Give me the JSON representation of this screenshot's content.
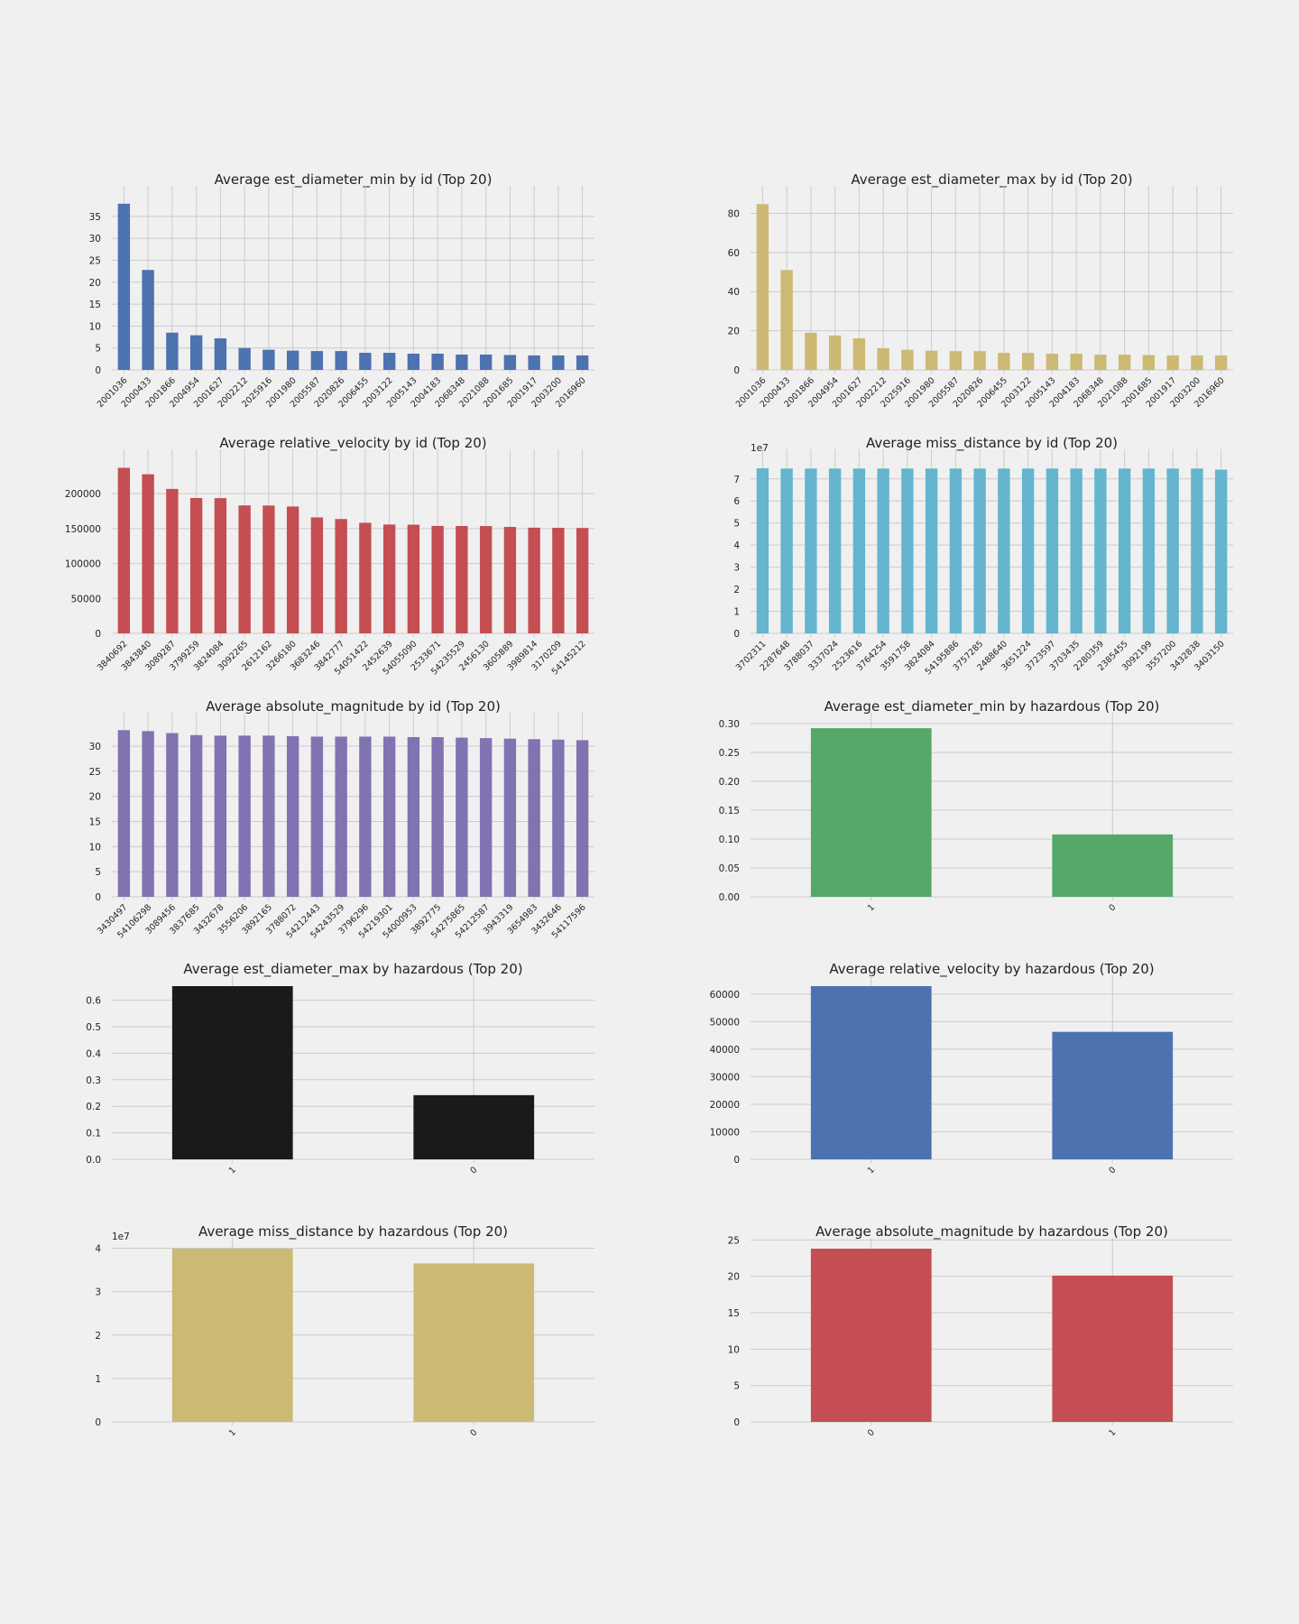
{
  "colors": {
    "background": "#f0f0f0",
    "grid": "#cbcbcb",
    "text": "#222222"
  },
  "chart_data": [
    {
      "type": "bar",
      "title": "Average est_diameter_min by id (Top 20)",
      "color": "#4c72b0",
      "categories": [
        "2001036",
        "2000433",
        "2001866",
        "2004954",
        "2001627",
        "2002212",
        "2025916",
        "2001980",
        "2005587",
        "2020826",
        "2006455",
        "2003122",
        "2005143",
        "2004183",
        "2068348",
        "2021088",
        "2001685",
        "2001917",
        "2003200",
        "2016960"
      ],
      "values": [
        37.9,
        22.8,
        8.5,
        7.9,
        7.2,
        5.0,
        4.6,
        4.4,
        4.3,
        4.3,
        3.9,
        3.9,
        3.7,
        3.7,
        3.5,
        3.5,
        3.4,
        3.3,
        3.3,
        3.3
      ],
      "yticks": [
        0,
        5,
        10,
        15,
        20,
        25,
        30,
        35
      ],
      "ytick_labels": [
        "0",
        "5",
        "10",
        "15",
        "20",
        "25",
        "30",
        "35"
      ],
      "ylim": [
        0,
        39.5
      ],
      "xtick_rotation": 45,
      "grid": true
    },
    {
      "type": "bar",
      "title": "Average est_diameter_max by id (Top 20)",
      "color": "#ccb974",
      "categories": [
        "2001036",
        "2000433",
        "2001866",
        "2004954",
        "2001627",
        "2002212",
        "2025916",
        "2001980",
        "2005587",
        "2020826",
        "2006455",
        "2003122",
        "2005143",
        "2004183",
        "2068348",
        "2021088",
        "2001685",
        "2001917",
        "2003200",
        "2016960"
      ],
      "values": [
        84.7,
        51.0,
        19.0,
        17.6,
        16.1,
        11.1,
        10.3,
        9.8,
        9.6,
        9.6,
        8.7,
        8.7,
        8.3,
        8.3,
        7.8,
        7.8,
        7.6,
        7.4,
        7.4,
        7.4
      ],
      "yticks": [
        0,
        20,
        40,
        60,
        80
      ],
      "ytick_labels": [
        "0",
        "20",
        "40",
        "60",
        "80"
      ],
      "ylim": [
        0,
        88.5
      ],
      "xtick_rotation": 45,
      "grid": true
    },
    {
      "type": "bar",
      "title": "Average relative_velocity by id (Top 20)",
      "color": "#c44e52",
      "categories": [
        "3840692",
        "3843840",
        "3089287",
        "3799259",
        "3824084",
        "3092265",
        "2612162",
        "3266180",
        "3683246",
        "3842777",
        "54051422",
        "2452639",
        "54055090",
        "2533671",
        "54235529",
        "2456130",
        "3605889",
        "3989814",
        "3170209",
        "54145212"
      ],
      "values": [
        236990,
        227800,
        206800,
        193800,
        193600,
        183200,
        183000,
        181600,
        166000,
        163700,
        158300,
        155800,
        155600,
        153800,
        153700,
        153600,
        152400,
        151300,
        151100,
        150900
      ],
      "yticks": [
        0,
        50000,
        100000,
        150000,
        200000
      ],
      "ytick_labels": [
        "0",
        "50000",
        "100000",
        "150000",
        "200000"
      ],
      "ylim": [
        0,
        248000
      ],
      "xtick_rotation": 45,
      "grid": true
    },
    {
      "type": "bar",
      "title": "Average miss_distance by id (Top 20)",
      "color": "#64b5cd",
      "categories": [
        "3702311",
        "2287648",
        "3788037",
        "3337024",
        "2523616",
        "3764254",
        "3591758",
        "3824084",
        "54195886",
        "3757285",
        "2488640",
        "3651224",
        "3723597",
        "3703435",
        "2280359",
        "2385455",
        "3092199",
        "3557200",
        "3432838",
        "3403150"
      ],
      "values": [
        7.48,
        7.47,
        7.47,
        7.47,
        7.47,
        7.47,
        7.47,
        7.47,
        7.47,
        7.47,
        7.47,
        7.47,
        7.47,
        7.47,
        7.47,
        7.47,
        7.47,
        7.47,
        7.47,
        7.42
      ],
      "offset_label": "1e7",
      "yticks": [
        0,
        1,
        2,
        3,
        4,
        5,
        6,
        7
      ],
      "ytick_labels": [
        "0",
        "1",
        "2",
        "3",
        "4",
        "5",
        "6",
        "7"
      ],
      "ylim": [
        0,
        7.85
      ],
      "xtick_rotation": 45,
      "grid": true
    },
    {
      "type": "bar",
      "title": "Average absolute_magnitude by id (Top 20)",
      "color": "#8172b2",
      "categories": [
        "3430497",
        "54106298",
        "3089456",
        "3837685",
        "3432678",
        "3556206",
        "3892165",
        "3788072",
        "54212443",
        "54243529",
        "3796296",
        "54219301",
        "54000953",
        "3892775",
        "54275865",
        "54212587",
        "3943319",
        "3654983",
        "3432646",
        "54117596"
      ],
      "values": [
        33.2,
        33.0,
        32.6,
        32.2,
        32.1,
        32.1,
        32.1,
        32.0,
        31.9,
        31.9,
        31.9,
        31.9,
        31.8,
        31.8,
        31.7,
        31.6,
        31.5,
        31.4,
        31.3,
        31.2
      ],
      "yticks": [
        0,
        5,
        10,
        15,
        20,
        25,
        30
      ],
      "ytick_labels": [
        "0",
        "5",
        "10",
        "15",
        "20",
        "25",
        "30"
      ],
      "ylim": [
        0,
        34.5
      ],
      "xtick_rotation": 45,
      "grid": true
    },
    {
      "type": "bar",
      "title": "Average est_diameter_min by hazardous (Top 20)",
      "color": "#55a868",
      "categories": [
        "1",
        "0"
      ],
      "values": [
        0.292,
        0.108
      ],
      "yticks": [
        0,
        0.05,
        0.1,
        0.15,
        0.2,
        0.25,
        0.3
      ],
      "ytick_labels": [
        "0.00",
        "0.05",
        "0.10",
        "0.15",
        "0.20",
        "0.25",
        "0.30"
      ],
      "ylim": [
        0,
        0.3
      ],
      "xtick_rotation": 45,
      "grid": true
    },
    {
      "type": "bar",
      "title": "Average est_diameter_max by hazardous (Top 20)",
      "color": "#1a1a1a",
      "categories": [
        "1",
        "0"
      ],
      "values": [
        0.653,
        0.242
      ],
      "yticks": [
        0,
        0.1,
        0.2,
        0.3,
        0.4,
        0.5,
        0.6
      ],
      "ytick_labels": [
        "0.0",
        "0.1",
        "0.2",
        "0.3",
        "0.4",
        "0.5",
        "0.6"
      ],
      "ylim": [
        0,
        0.653
      ],
      "xtick_rotation": 45,
      "grid": true
    },
    {
      "type": "bar",
      "title": "Average relative_velocity by hazardous (Top 20)",
      "color": "#4c72b0",
      "categories": [
        "1",
        "0"
      ],
      "values": [
        62900,
        46300
      ],
      "yticks": [
        0,
        10000,
        20000,
        30000,
        40000,
        50000,
        60000
      ],
      "ytick_labels": [
        "0",
        "10000",
        "20000",
        "30000",
        "40000",
        "50000",
        "60000"
      ],
      "ylim": [
        0,
        62900
      ],
      "xtick_rotation": 45,
      "grid": true
    },
    {
      "type": "bar",
      "title": "Average miss_distance by hazardous (Top 20)",
      "color": "#ccb974",
      "categories": [
        "1",
        "0"
      ],
      "values": [
        3.99,
        3.65
      ],
      "offset_label": "1e7",
      "yticks": [
        0,
        1,
        2,
        3,
        4
      ],
      "ytick_labels": [
        "0",
        "1",
        "2",
        "3",
        "4"
      ],
      "ylim": [
        0,
        3.99
      ],
      "xtick_rotation": 45,
      "grid": true
    },
    {
      "type": "bar",
      "title": "Average absolute_magnitude by hazardous (Top 20)",
      "color": "#c44e52",
      "categories": [
        "0",
        "1"
      ],
      "values": [
        23.8,
        20.1
      ],
      "yticks": [
        0,
        5,
        10,
        15,
        20,
        25
      ],
      "ytick_labels": [
        "0",
        "5",
        "10",
        "15",
        "20",
        "25"
      ],
      "ylim": [
        0,
        23.8
      ],
      "xtick_rotation": 45,
      "grid": true
    }
  ]
}
